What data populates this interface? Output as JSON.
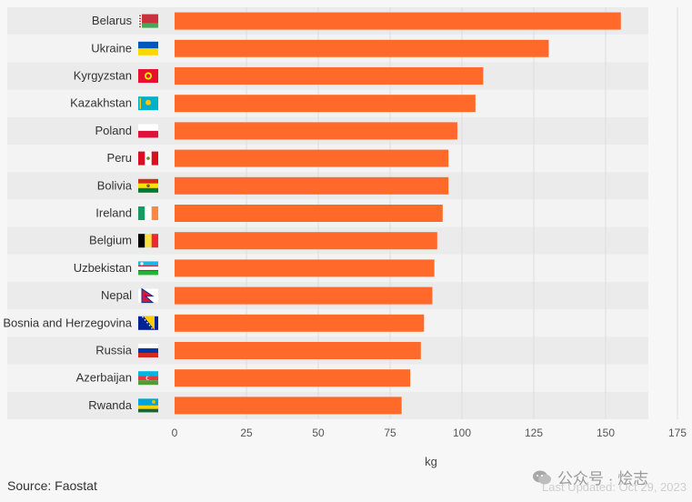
{
  "chart_data": {
    "type": "bar",
    "orientation": "horizontal",
    "categories": [
      "Belarus",
      "Ukraine",
      "Kyrgyzstan",
      "Kazakhstan",
      "Poland",
      "Peru",
      "Bolivia",
      "Ireland",
      "Belgium",
      "Uzbekistan",
      "Nepal",
      "Bosnia and Herzegovina",
      "Russia",
      "Azerbaijan",
      "Rwanda"
    ],
    "values": [
      155.3,
      130.2,
      107.4,
      104.7,
      98.4,
      95.3,
      95.3,
      93.3,
      91.4,
      90.4,
      89.7,
      86.8,
      85.7,
      82.0,
      79.0
    ],
    "xlabel": "kg",
    "xlim": [
      0,
      175
    ],
    "xticks": [
      0,
      25,
      50,
      75,
      100,
      125,
      150,
      175
    ],
    "bar_color": "#ff6a2b",
    "grid": true,
    "flags": [
      "belarus-flag-icon",
      "ukraine-flag-icon",
      "kyrgyzstan-flag-icon",
      "kazakhstan-flag-icon",
      "poland-flag-icon",
      "peru-flag-icon",
      "bolivia-flag-icon",
      "ireland-flag-icon",
      "belgium-flag-icon",
      "uzbekistan-flag-icon",
      "nepal-flag-icon",
      "bosnia-flag-icon",
      "russia-flag-icon",
      "azerbaijan-flag-icon",
      "rwanda-flag-icon"
    ]
  },
  "footer": {
    "source": "Source: Faostat",
    "updated": "Last Updated: Oct 29, 2023"
  },
  "watermark": {
    "text": "公众号 · 烩志"
  }
}
